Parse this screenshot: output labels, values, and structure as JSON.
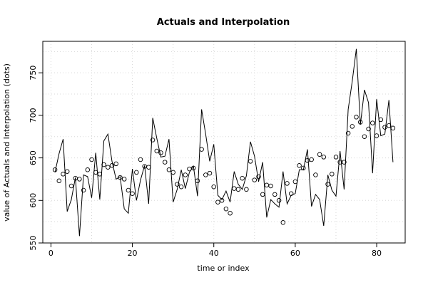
{
  "chart_data": {
    "type": "line",
    "title": "Actuals and Interpolation",
    "xlabel": "time or index",
    "ylabel": "value of Actuals and Interpolation (dots)",
    "xlim": [
      -2,
      87
    ],
    "ylim": [
      550,
      787
    ],
    "xticks": [
      0,
      20,
      40,
      60,
      80
    ],
    "yticks": [
      550,
      600,
      650,
      700,
      750
    ],
    "grid": true,
    "legend": "none",
    "line_color": "#000000",
    "series": [
      {
        "kind": "line",
        "x": [
          1,
          2,
          3,
          4,
          5,
          6,
          7,
          8,
          9,
          10,
          11,
          12,
          13,
          14,
          15,
          16,
          17,
          18,
          19,
          20,
          21,
          22,
          23,
          24,
          25,
          26,
          27,
          28,
          29,
          30,
          31,
          32,
          33,
          34,
          35,
          36,
          37,
          38,
          39,
          40,
          41,
          42,
          43,
          44,
          45,
          46,
          47,
          48,
          49,
          50,
          51,
          52,
          53,
          54,
          55,
          56,
          57,
          58,
          59,
          60,
          61,
          62,
          63,
          64,
          65,
          66,
          67,
          68,
          69,
          70,
          71,
          72,
          73,
          74,
          75,
          76,
          77,
          78,
          79,
          80,
          81,
          82,
          83,
          84
        ],
        "y": [
          633,
          655,
          672,
          587,
          601,
          627,
          558,
          630,
          628,
          603,
          656,
          601,
          670,
          678,
          646,
          625,
          628,
          590,
          585,
          637,
          600,
          624,
          641,
          596,
          697,
          673,
          651,
          652,
          672,
          598,
          613,
          636,
          614,
          633,
          640,
          605,
          707,
          678,
          646,
          666,
          606,
          601,
          611,
          598,
          634,
          619,
          613,
          629,
          669,
          652,
          622,
          645,
          580,
          601,
          596,
          592,
          634,
          596,
          606,
          608,
          636,
          636,
          660,
          593,
          607,
          601,
          570,
          630,
          612,
          605,
          658,
          613,
          707,
          740,
          778,
          689,
          730,
          715,
          632,
          719,
          676,
          678,
          718,
          645
        ]
      },
      {
        "kind": "points",
        "x": [
          1,
          2,
          3,
          4,
          5,
          6,
          7,
          8,
          9,
          10,
          11,
          12,
          13,
          14,
          15,
          16,
          17,
          18,
          19,
          20,
          21,
          22,
          23,
          24,
          25,
          26,
          27,
          28,
          29,
          30,
          31,
          32,
          33,
          34,
          35,
          36,
          37,
          38,
          39,
          40,
          41,
          42,
          43,
          44,
          45,
          46,
          47,
          48,
          49,
          50,
          51,
          52,
          53,
          54,
          55,
          56,
          57,
          58,
          59,
          60,
          61,
          62,
          63,
          64,
          65,
          66,
          67,
          68,
          69,
          70,
          71,
          72,
          73,
          74,
          75,
          76,
          77,
          78,
          79,
          80,
          81,
          82,
          83,
          84
        ],
        "y": [
          636,
          623,
          631,
          634,
          617,
          626,
          625,
          612,
          636,
          648,
          633,
          631,
          642,
          639,
          641,
          643,
          627,
          625,
          612,
          608,
          633,
          648,
          640,
          639,
          671,
          658,
          656,
          645,
          636,
          633,
          619,
          616,
          630,
          637,
          638,
          623,
          660,
          630,
          632,
          616,
          598,
          600,
          590,
          585,
          614,
          613,
          626,
          613,
          646,
          624,
          628,
          607,
          618,
          617,
          607,
          600,
          574,
          620,
          608,
          622,
          641,
          638,
          647,
          648,
          630,
          654,
          651,
          619,
          631,
          651,
          645,
          645,
          679,
          687,
          698,
          692,
          675,
          684,
          691,
          676,
          695,
          686,
          688,
          685
        ]
      }
    ]
  }
}
